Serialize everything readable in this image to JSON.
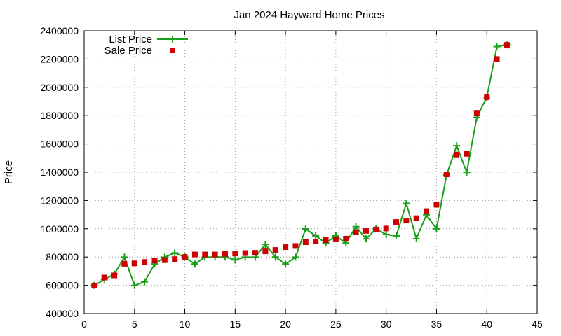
{
  "chart_data": {
    "type": "line",
    "title": "Jan 2024 Hayward Home Prices",
    "xlabel": "",
    "ylabel": "Price",
    "xlim": [
      0,
      45
    ],
    "ylim": [
      400000,
      2400000
    ],
    "x_ticks": [
      0,
      5,
      10,
      15,
      20,
      25,
      30,
      35,
      40,
      45
    ],
    "y_ticks": [
      400000,
      600000,
      800000,
      1000000,
      1200000,
      1400000,
      1600000,
      1800000,
      2000000,
      2200000,
      2400000
    ],
    "grid": true,
    "legend_position": "top-left",
    "series": [
      {
        "name": "List Price",
        "style": "line+cross",
        "color": "#1a9e1a",
        "x": [
          1,
          2,
          3,
          4,
          5,
          6,
          7,
          8,
          9,
          10,
          11,
          12,
          13,
          14,
          15,
          16,
          17,
          18,
          19,
          20,
          21,
          22,
          23,
          24,
          25,
          26,
          27,
          28,
          29,
          30,
          31,
          32,
          33,
          34,
          35,
          36,
          37,
          38,
          39,
          40,
          41,
          42
        ],
        "y": [
          599000,
          640000,
          680000,
          799000,
          599000,
          625000,
          750000,
          799000,
          829000,
          800000,
          750000,
          799000,
          800000,
          800000,
          780000,
          799000,
          799000,
          889000,
          800000,
          750000,
          799000,
          999000,
          950000,
          899000,
          950000,
          899000,
          1015000,
          929000,
          999000,
          960000,
          950000,
          1180000,
          930000,
          1099000,
          1000000,
          1380000,
          1588000,
          1399000,
          1788000,
          1930000,
          2288000,
          2300000
        ]
      },
      {
        "name": "Sale Price",
        "style": "square",
        "color": "#cc0000",
        "x": [
          1,
          2,
          3,
          4,
          5,
          6,
          7,
          8,
          9,
          10,
          11,
          12,
          13,
          14,
          15,
          16,
          17,
          18,
          19,
          20,
          21,
          22,
          23,
          24,
          25,
          26,
          27,
          28,
          29,
          30,
          31,
          32,
          33,
          34,
          35,
          36,
          37,
          38,
          39,
          40,
          41,
          42
        ],
        "y": [
          598000,
          655000,
          670000,
          752000,
          755000,
          765000,
          775000,
          778000,
          785000,
          800000,
          818000,
          818000,
          818000,
          822000,
          825000,
          828000,
          830000,
          840000,
          850000,
          870000,
          878000,
          905000,
          910000,
          920000,
          925000,
          930000,
          975000,
          985000,
          995000,
          1002000,
          1048000,
          1058000,
          1075000,
          1125000,
          1170000,
          1385000,
          1525000,
          1530000,
          1820000,
          1930000,
          2200000,
          2300000
        ]
      }
    ]
  }
}
